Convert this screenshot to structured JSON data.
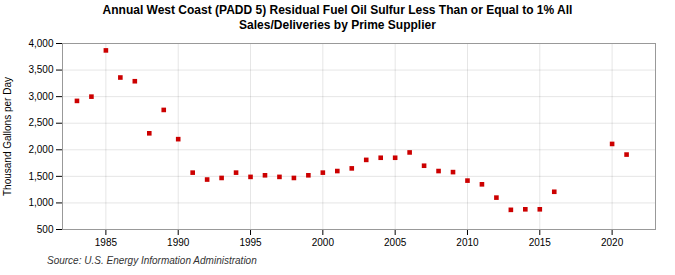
{
  "chart_data": {
    "type": "scatter",
    "title": "Annual West Coast (PADD 5) Residual Fuel Oil Sulfur Less Than or Equal to 1% All\nSales/Deliveries by Prime Supplier",
    "ylabel": "Thousand Gallons per Day",
    "caption": "Source: U.S. Energy Information Administration",
    "x": [
      1983,
      1984,
      1985,
      1986,
      1987,
      1988,
      1989,
      1990,
      1991,
      1992,
      1993,
      1994,
      1995,
      1996,
      1997,
      1998,
      1999,
      2000,
      2001,
      2002,
      2003,
      2004,
      2005,
      2006,
      2007,
      2008,
      2009,
      2010,
      2011,
      2012,
      2013,
      2014,
      2015,
      2016,
      2020,
      2021
    ],
    "values": [
      2920,
      3000,
      3870,
      3360,
      3290,
      2310,
      2750,
      2200,
      1570,
      1440,
      1470,
      1570,
      1490,
      1520,
      1490,
      1470,
      1520,
      1570,
      1600,
      1650,
      1810,
      1850,
      1850,
      1950,
      1700,
      1600,
      1580,
      1420,
      1350,
      1100,
      870,
      880,
      880,
      1210,
      2110,
      1910
    ],
    "color": "#cc0000",
    "marker": "square",
    "xlim": [
      1982,
      2023
    ],
    "xticks": [
      1985,
      1990,
      1995,
      2000,
      2005,
      2010,
      2015,
      2020
    ],
    "ylim": [
      500,
      4000
    ],
    "yticks": [
      500,
      {
        "value": 1000,
        "label": "1,000"
      },
      {
        "value": 1500,
        "label": "1,500"
      },
      {
        "value": 2000,
        "label": "2,000"
      },
      {
        "value": 2500,
        "label": "2,500"
      },
      {
        "value": 3000,
        "label": "3,000"
      },
      {
        "value": 3500,
        "label": "3,500"
      },
      {
        "value": 4000,
        "label": "4,000"
      }
    ],
    "grid": true
  }
}
